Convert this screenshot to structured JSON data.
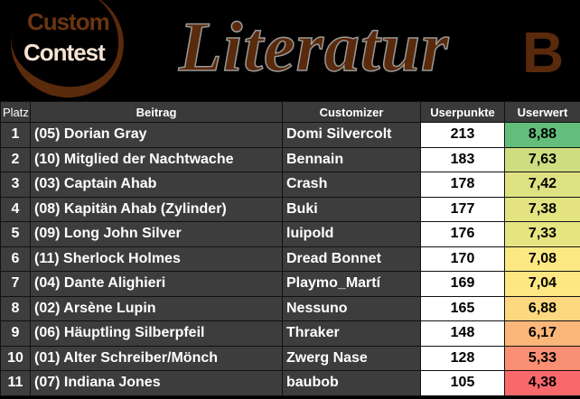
{
  "banner": {
    "logo_line1": "Custom",
    "logo_line2": "Contest",
    "title": "Literatur",
    "group": "B"
  },
  "headers": {
    "platz": "Platz",
    "beitrag": "Beitrag",
    "customizer": "Customizer",
    "userpunkte": "Userpunkte",
    "userwert": "Userwert"
  },
  "rows": [
    {
      "platz": "1",
      "beitrag": "(05) Dorian Gray",
      "customizer": "Domi Silvercolt",
      "userpunkte": "213",
      "userwert": "8,88",
      "color": "#63BE7B"
    },
    {
      "platz": "2",
      "beitrag": "(10) Mitglied der Nachtwache",
      "customizer": "Bennain",
      "userpunkte": "183",
      "userwert": "7,63",
      "color": "#CEDD80"
    },
    {
      "platz": "3",
      "beitrag": "(03) Captain Ahab",
      "customizer": "Crash",
      "userpunkte": "178",
      "userwert": "7,42",
      "color": "#DFE282"
    },
    {
      "platz": "4",
      "beitrag": "(08) Kapitän Ahab (Zylinder)",
      "customizer": "Buki",
      "userpunkte": "177",
      "userwert": "7,38",
      "color": "#E3E382"
    },
    {
      "platz": "5",
      "beitrag": "(09) Long John Silver",
      "customizer": "luipold",
      "userpunkte": "176",
      "userwert": "7,33",
      "color": "#E7E482"
    },
    {
      "platz": "6",
      "beitrag": "(11) Sherlock Holmes",
      "customizer": "Dread Bonnet",
      "userpunkte": "170",
      "userwert": "7,08",
      "color": "#FCE983"
    },
    {
      "platz": "7",
      "beitrag": "(04) Dante Alighieri",
      "customizer": "Playmo_Martí",
      "userpunkte": "169",
      "userwert": "7,04",
      "color": "#FEE683"
    },
    {
      "platz": "8",
      "beitrag": "(02) Arsène Lupin",
      "customizer": "Nessuno",
      "userpunkte": "165",
      "userwert": "6,88",
      "color": "#FDD880"
    },
    {
      "platz": "9",
      "beitrag": "(06) Häuptling Silberpfeil",
      "customizer": "Thraker",
      "userpunkte": "148",
      "userwert": "6,17",
      "color": "#FBB679"
    },
    {
      "platz": "10",
      "beitrag": "(01) Alter Schreiber/Mönch",
      "customizer": "Zwerg Nase",
      "userpunkte": "128",
      "userwert": "5,33",
      "color": "#F98F73"
    },
    {
      "platz": "11",
      "beitrag": "(07) Indiana Jones",
      "customizer": "baubob",
      "userpunkte": "105",
      "userwert": "4,38",
      "color": "#F8696B"
    }
  ]
}
